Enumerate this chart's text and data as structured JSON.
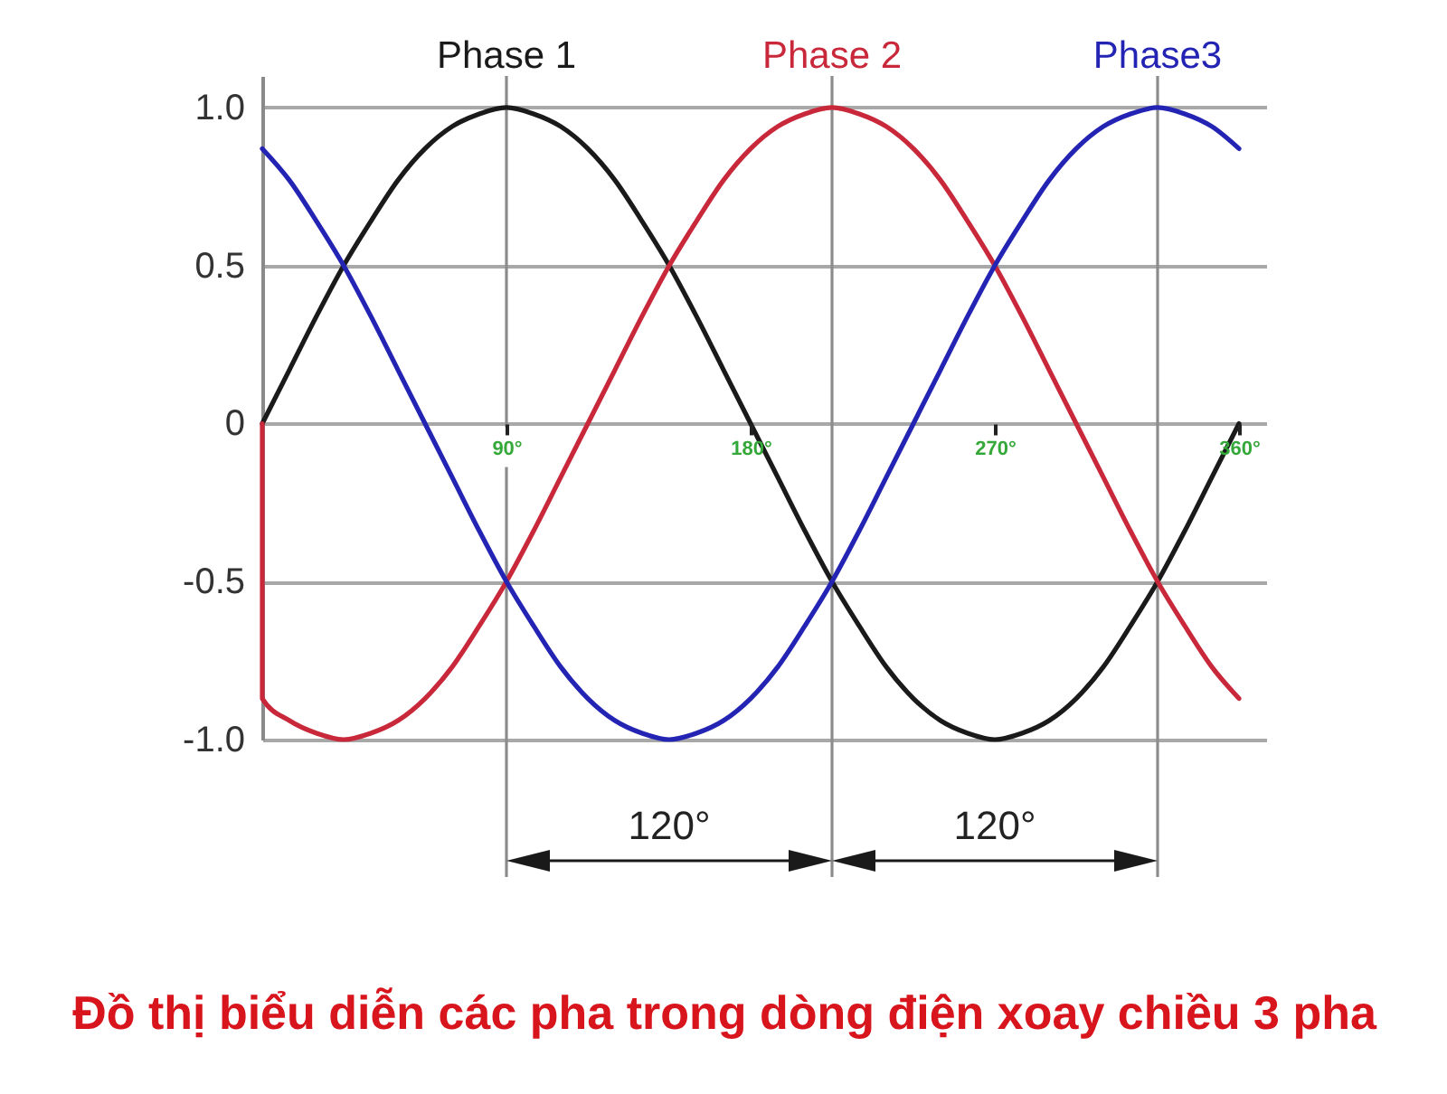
{
  "chart_data": {
    "type": "line",
    "title": "Đồ thị biểu diễn các pha trong dòng điện xoay chiều 3 pha",
    "x": [
      0,
      10,
      20,
      30,
      40,
      50,
      60,
      70,
      80,
      90,
      100,
      110,
      120,
      130,
      140,
      150,
      160,
      170,
      180,
      190,
      200,
      210,
      220,
      230,
      240,
      250,
      260,
      270,
      280,
      290,
      300,
      310,
      320,
      330,
      340,
      350,
      360
    ],
    "series": [
      {
        "name": "Phase 1",
        "color": "#1a1a1a",
        "values": [
          0,
          0.17,
          0.34,
          0.5,
          0.64,
          0.77,
          0.87,
          0.94,
          0.98,
          1,
          0.98,
          0.94,
          0.87,
          0.77,
          0.64,
          0.5,
          0.34,
          0.17,
          0,
          -0.17,
          -0.34,
          -0.5,
          -0.64,
          -0.77,
          -0.87,
          -0.94,
          -0.98,
          -1,
          -0.98,
          -0.94,
          -0.87,
          -0.77,
          -0.64,
          -0.5,
          -0.34,
          -0.17,
          0
        ]
      },
      {
        "name": "Phase 2",
        "color": "#c8283a",
        "x": [
          0,
          0,
          10,
          20,
          30,
          40,
          50,
          60,
          70,
          80,
          90,
          100,
          110,
          120,
          130,
          140,
          150,
          160,
          170,
          180,
          190,
          200,
          210,
          220,
          230,
          240,
          250,
          260,
          270,
          280,
          290,
          300,
          310,
          320,
          330,
          340,
          350,
          360
        ],
        "values": [
          0,
          -0.87,
          -0.94,
          -0.98,
          -1,
          -0.98,
          -0.94,
          -0.87,
          -0.77,
          -0.64,
          -0.5,
          -0.34,
          -0.17,
          0,
          0.17,
          0.34,
          0.5,
          0.64,
          0.77,
          0.87,
          0.94,
          0.98,
          1,
          0.98,
          0.94,
          0.87,
          0.77,
          0.64,
          0.5,
          0.34,
          0.17,
          0,
          -0.17,
          -0.34,
          -0.5,
          -0.64,
          -0.77,
          -0.87
        ]
      },
      {
        "name": "Phase3",
        "color": "#2424b4",
        "values": [
          0.87,
          0.77,
          0.64,
          0.5,
          0.34,
          0.17,
          0,
          -0.17,
          -0.34,
          -0.5,
          -0.64,
          -0.77,
          -0.87,
          -0.94,
          -0.98,
          -1,
          -0.98,
          -0.94,
          -0.87,
          -0.77,
          -0.64,
          -0.5,
          -0.34,
          -0.17,
          0,
          0.17,
          0.34,
          0.5,
          0.64,
          0.77,
          0.87,
          0.94,
          0.98,
          1,
          0.98,
          0.94,
          0.87
        ]
      }
    ],
    "xlim": [
      0,
      370
    ],
    "xticks": [
      {
        "value": 90,
        "label": "90°"
      },
      {
        "value": 180,
        "label": "180°"
      },
      {
        "value": 270,
        "label": "270°"
      },
      {
        "value": 360,
        "label": "360°"
      }
    ],
    "ylim": [
      -1,
      1.1
    ],
    "yticks": [
      {
        "value": -1,
        "label": "-1.0"
      },
      -0.5,
      0,
      0.5,
      {
        "value": 1,
        "label": "1.0"
      }
    ],
    "grid": "y",
    "line_style": "solid",
    "ref_lines": [
      {
        "axis": "x",
        "value": 90,
        "color": "#8c8c8c"
      },
      {
        "axis": "x",
        "value": 210,
        "color": "#8c8c8c"
      },
      {
        "axis": "x",
        "value": 330,
        "color": "#8c8c8c"
      }
    ],
    "annotations": [
      "120°",
      "120°"
    ]
  }
}
